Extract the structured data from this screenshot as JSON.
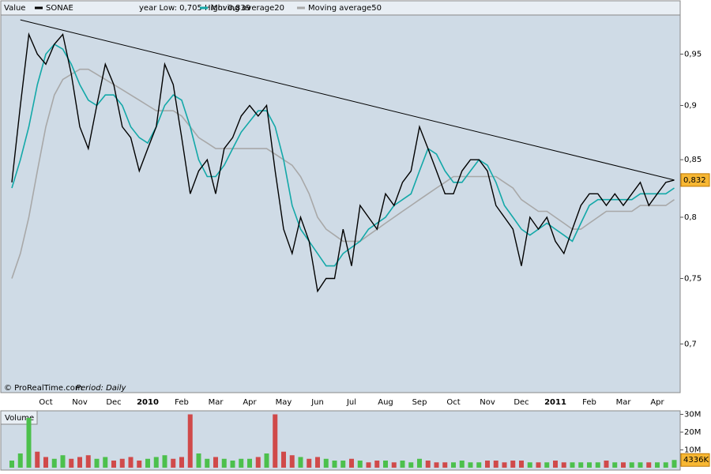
{
  "chart_data": [
    {
      "type": "line",
      "title": "Value",
      "header_note": "year Low: 0,705 High: 0,839",
      "credit": "© ProRealTime.com",
      "period": "Period: Daily",
      "categories": [
        null,
        null,
        null,
        null,
        "Oct",
        null,
        null,
        null,
        "Nov",
        null,
        null,
        null,
        "Dec",
        null,
        null,
        null,
        "2010",
        null,
        null,
        null,
        "Feb",
        null,
        null,
        null,
        "Mar",
        null,
        null,
        null,
        "Apr",
        null,
        null,
        null,
        "May",
        null,
        null,
        null,
        "Jun",
        null,
        null,
        null,
        "Jul",
        null,
        null,
        null,
        "Aug",
        null,
        null,
        null,
        "Sep",
        null,
        null,
        null,
        "Oct",
        null,
        null,
        null,
        "Nov",
        null,
        null,
        null,
        "Dec",
        null,
        null,
        null,
        "2011",
        null,
        null,
        null,
        "Feb",
        null,
        null,
        null,
        "Mar",
        null,
        null,
        null,
        "Apr",
        null,
        null
      ],
      "series": [
        {
          "name": "SONAE",
          "color": "#000000",
          "values": [
            0.83,
            0.9,
            0.97,
            0.95,
            0.94,
            0.96,
            0.97,
            0.93,
            0.88,
            0.86,
            0.9,
            0.94,
            0.92,
            0.88,
            0.87,
            0.84,
            0.86,
            0.88,
            0.94,
            0.92,
            0.87,
            0.82,
            0.84,
            0.85,
            0.82,
            0.86,
            0.87,
            0.89,
            0.9,
            0.89,
            0.9,
            0.84,
            0.79,
            0.77,
            0.8,
            0.78,
            0.74,
            0.75,
            0.75,
            0.79,
            0.76,
            0.81,
            0.8,
            0.79,
            0.82,
            0.81,
            0.83,
            0.84,
            0.88,
            0.86,
            0.84,
            0.82,
            0.82,
            0.84,
            0.85,
            0.85,
            0.84,
            0.81,
            0.8,
            0.79,
            0.76,
            0.8,
            0.79,
            0.8,
            0.78,
            0.77,
            0.79,
            0.81,
            0.82,
            0.82,
            0.81,
            0.82,
            0.81,
            0.82,
            0.83,
            0.81,
            0.82,
            0.83,
            0.832
          ]
        },
        {
          "name": "Moving average20",
          "color": "#13a8a8",
          "values": [
            0.825,
            0.85,
            0.88,
            0.92,
            0.95,
            0.96,
            0.955,
            0.94,
            0.92,
            0.905,
            0.9,
            0.91,
            0.91,
            0.9,
            0.88,
            0.87,
            0.865,
            0.88,
            0.9,
            0.91,
            0.905,
            0.88,
            0.85,
            0.835,
            0.835,
            0.845,
            0.86,
            0.875,
            0.885,
            0.895,
            0.895,
            0.88,
            0.85,
            0.81,
            0.79,
            0.78,
            0.77,
            0.76,
            0.76,
            0.77,
            0.775,
            0.78,
            0.79,
            0.795,
            0.8,
            0.81,
            0.815,
            0.82,
            0.84,
            0.86,
            0.855,
            0.84,
            0.83,
            0.83,
            0.84,
            0.85,
            0.845,
            0.83,
            0.81,
            0.8,
            0.79,
            0.785,
            0.79,
            0.795,
            0.79,
            0.785,
            0.78,
            0.795,
            0.81,
            0.815,
            0.815,
            0.815,
            0.815,
            0.815,
            0.82,
            0.82,
            0.82,
            0.82,
            0.825
          ]
        },
        {
          "name": "Moving average50",
          "color": "#a8a8a8",
          "values": [
            0.75,
            0.77,
            0.8,
            0.84,
            0.88,
            0.91,
            0.925,
            0.93,
            0.935,
            0.935,
            0.93,
            0.925,
            0.92,
            0.915,
            0.91,
            0.905,
            0.9,
            0.895,
            0.895,
            0.895,
            0.89,
            0.88,
            0.87,
            0.865,
            0.86,
            0.86,
            0.86,
            0.86,
            0.86,
            0.86,
            0.86,
            0.855,
            0.85,
            0.845,
            0.835,
            0.82,
            0.8,
            0.79,
            0.785,
            0.78,
            0.78,
            0.78,
            0.785,
            0.79,
            0.795,
            0.8,
            0.805,
            0.81,
            0.815,
            0.82,
            0.825,
            0.83,
            0.835,
            0.835,
            0.835,
            0.835,
            0.835,
            0.835,
            0.83,
            0.825,
            0.815,
            0.81,
            0.805,
            0.805,
            0.8,
            0.795,
            0.79,
            0.79,
            0.795,
            0.8,
            0.805,
            0.805,
            0.805,
            0.805,
            0.81,
            0.81,
            0.81,
            0.81,
            0.815
          ]
        }
      ],
      "trendline": {
        "x": [
          1,
          78
        ],
        "values": [
          0.985,
          0.832
        ]
      },
      "last_value": {
        "value": 0.832,
        "label": "0,832"
      },
      "log_scale": true,
      "ylim": [
        0.665,
        0.99
      ],
      "yticks": [
        {
          "value": 0.7,
          "label": "0,7"
        },
        {
          "value": 0.75,
          "label": "0,75"
        },
        {
          "value": 0.8,
          "label": "0,8"
        },
        {
          "value": 0.85,
          "label": "0,85"
        },
        {
          "value": 0.9,
          "label": "0,9"
        },
        {
          "value": 0.95,
          "label": "0,95"
        }
      ]
    },
    {
      "type": "bar",
      "title": "Volume",
      "up_color": "#4cc04c",
      "down_color": "#d04a4a",
      "values": [
        4000000,
        8000000,
        28000000,
        9000000,
        6000000,
        5000000,
        7000000,
        5000000,
        6000000,
        7000000,
        5000000,
        6000000,
        4000000,
        5000000,
        6000000,
        4000000,
        5000000,
        6000000,
        7000000,
        5000000,
        6000000,
        30000000,
        8000000,
        5000000,
        6000000,
        5000000,
        4000000,
        5000000,
        5000000,
        6000000,
        8000000,
        30000000,
        9000000,
        7000000,
        6000000,
        5000000,
        6000000,
        5000000,
        4000000,
        4000000,
        5000000,
        4000000,
        3000000,
        4000000,
        4000000,
        3000000,
        4000000,
        3000000,
        5000000,
        4000000,
        3000000,
        3000000,
        3000000,
        4000000,
        3000000,
        3000000,
        4000000,
        4000000,
        3000000,
        4000000,
        4000000,
        3000000,
        3000000,
        3000000,
        4000000,
        3000000,
        3000000,
        3000000,
        3000000,
        3000000,
        4000000,
        3000000,
        3000000,
        3000000,
        3000000,
        3000000,
        3000000,
        3000000,
        4336000
      ],
      "last_value": {
        "value": 4336000,
        "label": "4336K"
      },
      "ylim": [
        0,
        32000000
      ],
      "yticks": [
        {
          "value": 10000000,
          "label": "10M"
        },
        {
          "value": 20000000,
          "label": "20M"
        },
        {
          "value": 30000000,
          "label": "30M"
        }
      ]
    }
  ]
}
